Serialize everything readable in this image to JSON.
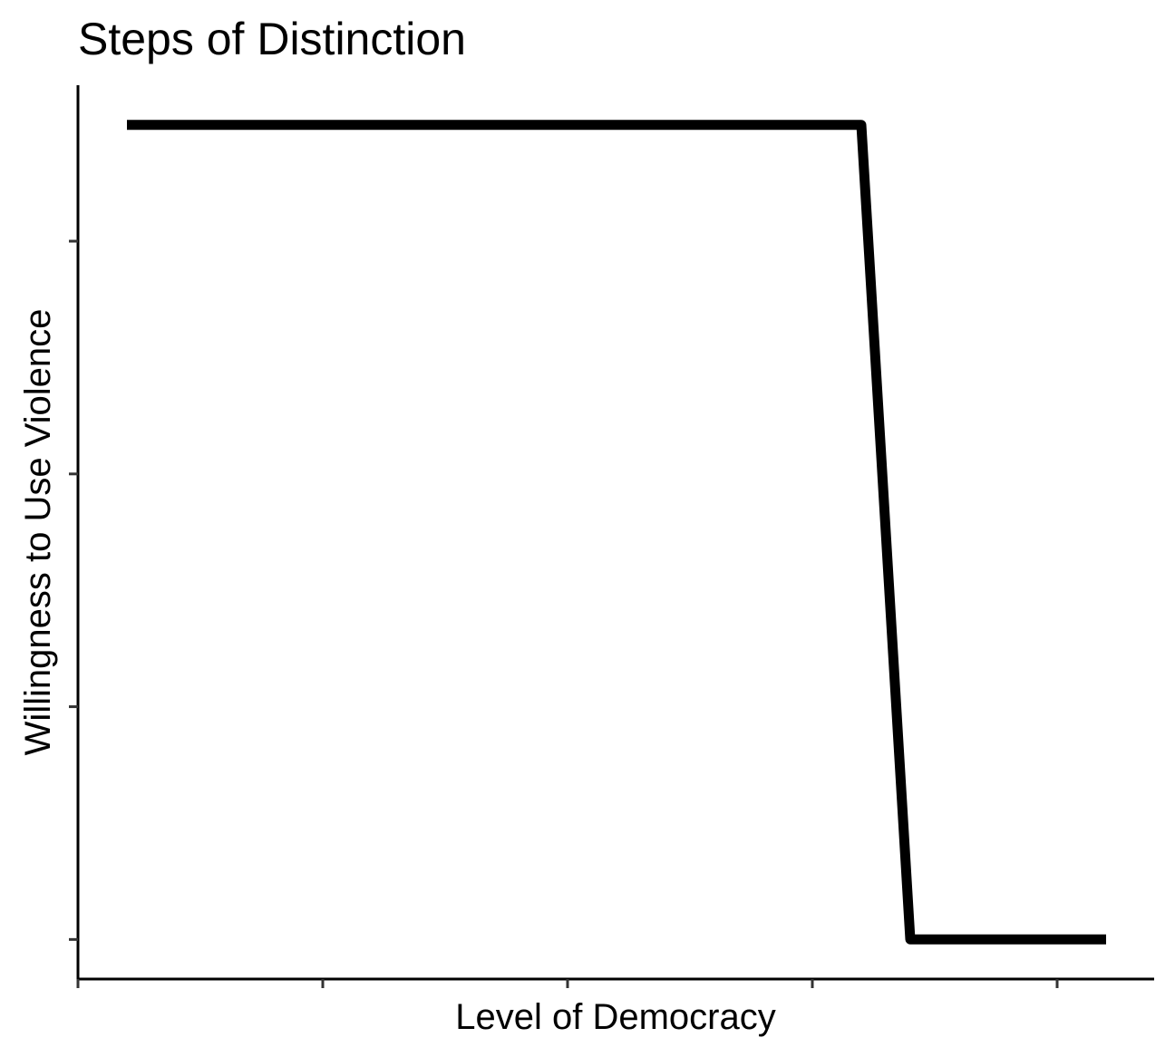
{
  "chart_data": {
    "type": "line",
    "title": "Steps of Distinction",
    "xlabel": "Level of Democracy",
    "ylabel": "Willingness to Use Violence",
    "x_ticks": [
      0,
      1,
      2,
      3,
      4
    ],
    "y_ticks": [
      0,
      1,
      2,
      3
    ],
    "xlim": [
      0,
      4.4
    ],
    "ylim": [
      -0.17,
      3.67
    ],
    "tick_labels_shown": false,
    "grid": false,
    "legend": "none",
    "series": [
      {
        "color": "#000000",
        "x": [
          0.2,
          3.2,
          3.4,
          4.2
        ],
        "y": [
          3.5,
          3.5,
          0,
          0
        ]
      }
    ]
  }
}
